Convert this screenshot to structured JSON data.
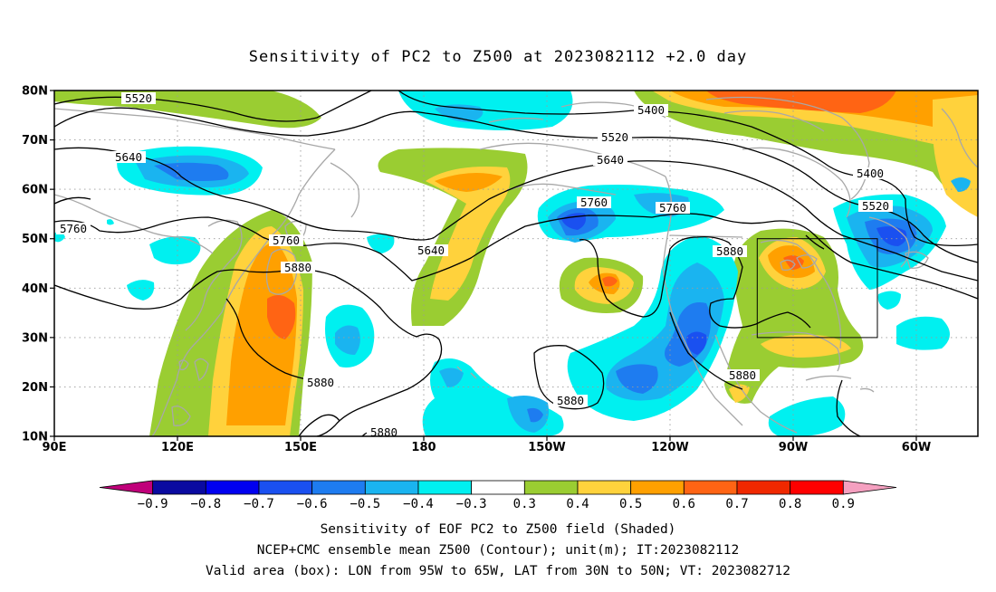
{
  "title": "Sensitivity of PC2 to Z500 at 2023082112 +2.0 day",
  "lat_labels": [
    "80N",
    "70N",
    "60N",
    "50N",
    "40N",
    "30N",
    "20N",
    "10N"
  ],
  "lon_labels": [
    "90E",
    "120E",
    "150E",
    "180",
    "150W",
    "120W",
    "90W",
    "60W"
  ],
  "contour_labels": [
    {
      "text": "5520"
    },
    {
      "text": "5640"
    },
    {
      "text": "5760"
    },
    {
      "text": "5400"
    },
    {
      "text": "5520"
    },
    {
      "text": "5640"
    },
    {
      "text": "5400"
    },
    {
      "text": "5520"
    },
    {
      "text": "5760"
    },
    {
      "text": "5880"
    },
    {
      "text": "5640"
    },
    {
      "text": "5760"
    },
    {
      "text": "5760"
    },
    {
      "text": "5880"
    },
    {
      "text": "5880"
    },
    {
      "text": "5880"
    },
    {
      "text": "5880"
    },
    {
      "text": "5880"
    }
  ],
  "colorbar": {
    "labels": [
      "-0.9",
      "-0.8",
      "-0.7",
      "-0.6",
      "-0.5",
      "-0.4",
      "-0.3",
      "0.3",
      "0.4",
      "0.5",
      "0.6",
      "0.7",
      "0.8",
      "0.9"
    ],
    "colors": [
      "#c0007a",
      "#0a0aa0",
      "#0000f0",
      "#1a50f0",
      "#1e7cf0",
      "#1ab4f0",
      "#00f0f0",
      "#ffffff",
      "#9acd32",
      "#ffd23c",
      "#ffa000",
      "#ff6414",
      "#f02800",
      "#ff0000",
      "#f5a0c0"
    ]
  },
  "captions": [
    "Sensitivity of EOF PC2 to Z500 field (Shaded)",
    "NCEP+CMC ensemble mean Z500 (Contour); unit(m); IT:2023082112",
    "Valid area (box): LON from 95W to 65W, LAT from 30N to 50N; VT: 2023082712"
  ],
  "valid_box": {
    "lon_min": -95,
    "lon_max": -65,
    "lat_min": 30,
    "lat_max": 50
  }
}
